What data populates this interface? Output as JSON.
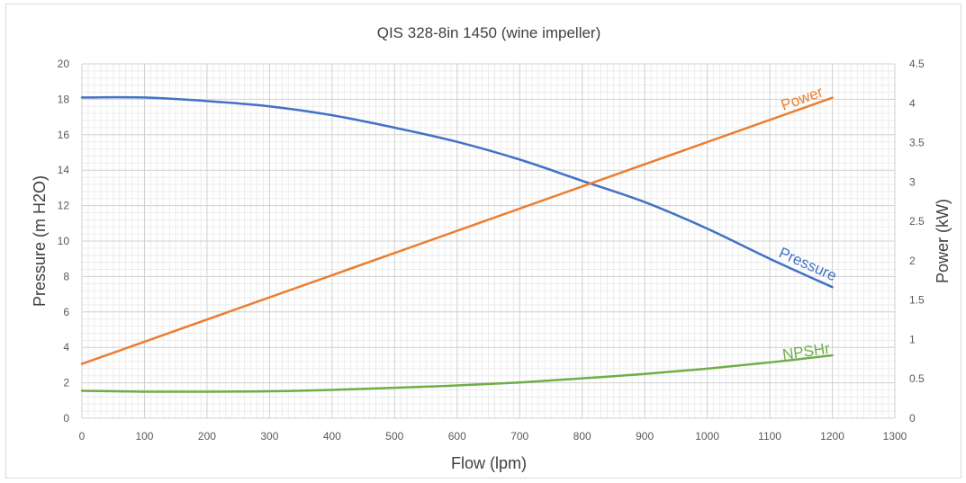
{
  "chart_data": {
    "type": "line",
    "title": "QIS 328-8in 1450 (wine impeller)",
    "xlabel": "Flow (lpm)",
    "ylabel": "Pressure (m H2O)",
    "y2label": "Power (kW)",
    "xlim": [
      0,
      1300
    ],
    "ylim": [
      0,
      20
    ],
    "y2lim": [
      0,
      4.5
    ],
    "x_ticks": [
      "0",
      "100",
      "200",
      "300",
      "400",
      "500",
      "600",
      "700",
      "800",
      "900",
      "1000",
      "1100",
      "1200",
      "1300"
    ],
    "y_ticks": [
      "0",
      "2",
      "4",
      "6",
      "8",
      "10",
      "12",
      "14",
      "16",
      "18",
      "20"
    ],
    "y2_ticks": [
      "0",
      "0.5",
      "1",
      "1.5",
      "2",
      "2.5",
      "3",
      "3.5",
      "4",
      "4.5"
    ],
    "grid": "major and minor",
    "series": [
      {
        "name": "Pressure",
        "axis": "left",
        "color": "#4472c4",
        "x": [
          0,
          100,
          200,
          300,
          400,
          500,
          600,
          700,
          800,
          900,
          1000,
          1100,
          1200
        ],
        "values": [
          18.1,
          18.1,
          17.9,
          17.6,
          17.1,
          16.4,
          15.6,
          14.6,
          13.4,
          12.2,
          10.7,
          9.0,
          7.4
        ]
      },
      {
        "name": "Power",
        "axis": "right",
        "color": "#ed7d31",
        "x": [
          0,
          1200
        ],
        "values": [
          0.69,
          4.07
        ]
      },
      {
        "name": "NPSHr",
        "axis": "left",
        "color": "#70ad47",
        "x": [
          0,
          100,
          200,
          300,
          400,
          500,
          600,
          700,
          800,
          900,
          1000,
          1100,
          1200
        ],
        "values": [
          1.55,
          1.5,
          1.5,
          1.52,
          1.6,
          1.72,
          1.85,
          2.02,
          2.25,
          2.5,
          2.8,
          3.15,
          3.55
        ]
      }
    ]
  }
}
